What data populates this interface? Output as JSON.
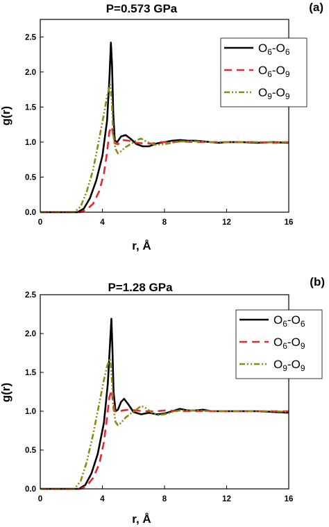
{
  "chart_data": [
    {
      "type": "line",
      "panel_label": "(a)",
      "title": "P=0.573 GPa",
      "xlabel": "r, Å",
      "ylabel": "g(r)",
      "xlim": [
        0,
        16
      ],
      "ylim": [
        0,
        2.75
      ],
      "xticks": [
        0,
        4,
        8,
        12,
        16
      ],
      "yticks": [
        0.0,
        0.5,
        1.0,
        1.5,
        2.0,
        2.5
      ],
      "xtick_labels": [
        "0",
        "4",
        "8",
        "12",
        "16"
      ],
      "ytick_labels": [
        "0.0",
        "0.5",
        "1.0",
        "1.5",
        "2.0",
        "2.5"
      ],
      "legend_position": "top-right",
      "series": [
        {
          "name": "O6-O6",
          "name_main": "O",
          "name_sub1": "6",
          "name_mid": "-O",
          "name_sub2": "6",
          "color": "#000000",
          "style": "solid",
          "x": [
            0,
            2.4,
            2.8,
            3.2,
            3.6,
            4.0,
            4.3,
            4.45,
            4.55,
            4.62,
            4.7,
            4.8,
            4.95,
            5.2,
            5.5,
            5.8,
            6.2,
            6.6,
            7.0,
            7.5,
            8.0,
            8.5,
            9.0,
            9.5,
            10.0,
            10.5,
            11.0,
            11.5,
            12.0,
            13.0,
            14.0,
            15.0,
            16.0
          ],
          "y": [
            0,
            0,
            0.05,
            0.2,
            0.45,
            0.8,
            1.3,
            1.9,
            2.42,
            2.1,
            1.4,
            1.02,
            1.0,
            1.08,
            1.1,
            1.05,
            0.97,
            0.94,
            0.94,
            0.98,
            1.0,
            1.02,
            1.03,
            1.02,
            1.02,
            1.01,
            1.0,
            0.99,
            1.0,
            1.0,
            0.99,
            1.0,
            0.99
          ]
        },
        {
          "name": "O6-O9",
          "name_main": "O",
          "name_sub1": "6",
          "name_mid": "-O",
          "name_sub2": "9",
          "color": "#e8262b",
          "style": "dashed",
          "x": [
            0,
            2.6,
            3.0,
            3.4,
            3.8,
            4.1,
            4.3,
            4.45,
            4.6,
            4.7,
            4.8,
            5.0,
            5.3,
            5.7,
            6.2,
            6.7,
            7.2,
            7.8,
            8.5,
            9.0,
            10.0,
            11.0,
            12.0,
            13.0,
            14.0,
            15.0,
            16.0
          ],
          "y": [
            0,
            0,
            0.04,
            0.12,
            0.3,
            0.55,
            0.85,
            1.15,
            1.22,
            1.1,
            0.98,
            0.97,
            1.03,
            1.02,
            0.99,
            0.98,
            0.98,
            1.0,
            1.0,
            1.01,
            1.0,
            1.0,
            1.0,
            1.0,
            1.0,
            0.99,
            1.0
          ]
        },
        {
          "name": "O9-O9",
          "name_main": "O",
          "name_sub1": "9",
          "name_mid": "-O",
          "name_sub2": "9",
          "color": "#8a8a12",
          "style": "dashdot",
          "x": [
            0,
            2.2,
            2.6,
            3.0,
            3.4,
            3.8,
            4.1,
            4.3,
            4.5,
            4.6,
            4.7,
            4.85,
            5.0,
            5.2,
            5.5,
            5.9,
            6.2,
            6.5,
            6.9,
            7.4,
            8.0,
            8.5,
            9.0,
            10.0,
            11.0,
            12.0,
            13.0,
            14.0,
            15.0,
            16.0
          ],
          "y": [
            0,
            0,
            0.08,
            0.3,
            0.6,
            1.05,
            1.4,
            1.65,
            1.82,
            1.6,
            1.1,
            0.9,
            0.84,
            0.87,
            0.93,
            0.98,
            1.03,
            1.05,
            1.0,
            0.96,
            0.97,
            0.99,
            1.01,
            1.01,
            1.0,
            1.0,
            1.0,
            1.0,
            1.0,
            1.0
          ]
        }
      ]
    },
    {
      "type": "line",
      "panel_label": "(b)",
      "title": "P=1.28 GPa",
      "xlabel": "r, Å",
      "ylabel": "g(r)",
      "xlim": [
        0,
        16
      ],
      "ylim": [
        0,
        2.5
      ],
      "xticks": [
        0,
        4,
        8,
        12,
        16
      ],
      "yticks": [
        0.0,
        0.5,
        1.0,
        1.5,
        2.0,
        2.5
      ],
      "xtick_labels": [
        "0",
        "4",
        "8",
        "12",
        "16"
      ],
      "ytick_labels": [
        "0.0",
        "0.5",
        "1.0",
        "1.5",
        "2.0",
        "2.5"
      ],
      "legend_position": "top-right",
      "series": [
        {
          "name": "O6-O6",
          "name_main": "O",
          "name_sub1": "6",
          "name_mid": "-O",
          "name_sub2": "6",
          "color": "#000000",
          "style": "solid",
          "x": [
            0,
            2.5,
            2.9,
            3.3,
            3.7,
            4.1,
            4.35,
            4.5,
            4.58,
            4.65,
            4.72,
            4.85,
            5.0,
            5.2,
            5.4,
            5.7,
            6.0,
            6.5,
            7.0,
            7.5,
            8.0,
            8.5,
            9.0,
            9.5,
            10.0,
            10.5,
            11.0,
            12.0,
            13.0,
            14.0,
            15.0,
            16.0
          ],
          "y": [
            0,
            0,
            0.05,
            0.2,
            0.45,
            0.85,
            1.35,
            1.9,
            2.19,
            1.8,
            1.25,
            1.0,
            1.02,
            1.12,
            1.16,
            1.08,
            0.99,
            0.96,
            0.98,
            0.96,
            0.97,
            1.0,
            1.03,
            1.01,
            1.01,
            1.02,
            1.0,
            1.0,
            1.0,
            1.0,
            0.99,
            0.98
          ]
        },
        {
          "name": "O6-O9",
          "name_main": "O",
          "name_sub1": "6",
          "name_mid": "-O",
          "name_sub2": "9",
          "color": "#e8262b",
          "style": "dashed",
          "x": [
            0,
            2.6,
            3.0,
            3.4,
            3.8,
            4.1,
            4.3,
            4.45,
            4.58,
            4.7,
            4.8,
            5.0,
            5.3,
            5.7,
            6.2,
            6.6,
            7.0,
            7.5,
            8.0,
            9.0,
            10.0,
            11.0,
            12.0,
            13.0,
            14.0,
            15.0,
            16.0
          ],
          "y": [
            0,
            0,
            0.04,
            0.14,
            0.32,
            0.6,
            0.92,
            1.18,
            1.27,
            1.12,
            1.0,
            0.99,
            1.01,
            1.02,
            1.01,
            1.0,
            1.0,
            1.0,
            1.01,
            1.0,
            1.0,
            1.0,
            1.0,
            1.0,
            1.0,
            1.0,
            1.0
          ]
        },
        {
          "name": "O9-O9",
          "name_main": "O",
          "name_sub1": "9",
          "name_mid": "-O",
          "name_sub2": "9",
          "color": "#8a8a12",
          "style": "dashdot",
          "x": [
            0,
            2.2,
            2.6,
            3.0,
            3.4,
            3.8,
            4.1,
            4.3,
            4.5,
            4.6,
            4.7,
            4.85,
            5.0,
            5.2,
            5.5,
            5.9,
            6.2,
            6.5,
            6.8,
            7.2,
            7.6,
            8.0,
            8.5,
            9.0,
            10.0,
            11.0,
            12.0,
            13.0,
            14.0,
            15.0,
            16.0
          ],
          "y": [
            0,
            0,
            0.1,
            0.35,
            0.7,
            1.1,
            1.4,
            1.58,
            1.68,
            1.45,
            1.05,
            0.86,
            0.82,
            0.85,
            0.92,
            0.98,
            1.02,
            1.07,
            1.04,
            0.98,
            0.95,
            0.96,
            0.99,
            1.01,
            1.01,
            1.0,
            1.0,
            1.0,
            1.0,
            1.0,
            0.99
          ]
        }
      ]
    }
  ]
}
